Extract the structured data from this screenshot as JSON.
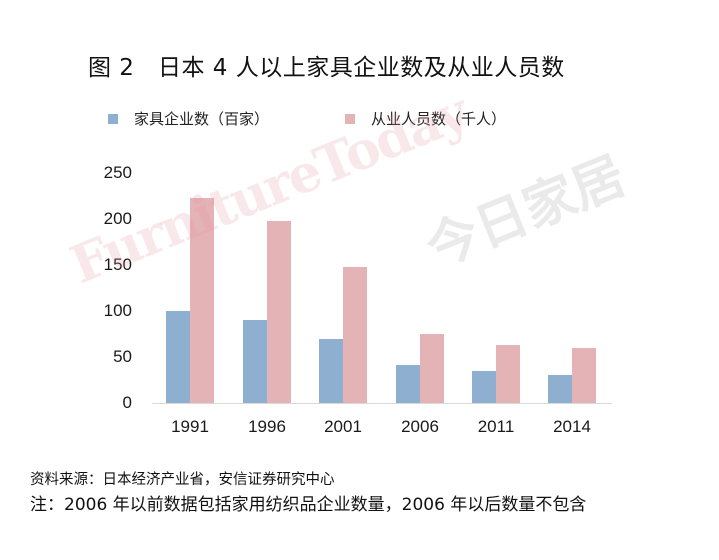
{
  "title": "图 2　日本 4 人以上家具企业数及从业人员数",
  "legend": [
    {
      "label": "家具企业数（百家）",
      "color": "#8eafd0"
    },
    {
      "label": "从业人员数（千人）",
      "color": "#e4b3b6"
    }
  ],
  "watermark": {
    "en": "FurnitureToday",
    "zh": "今日家居"
  },
  "yticks": [
    "250",
    "200",
    "150",
    "100",
    "50",
    "0"
  ],
  "source": "资料来源：日本经济产业省，安信证券研究中心",
  "note": "注：2006 年以前数据包括家用纺织品企业数量，2006 年以后数量不包含",
  "chart_data": {
    "type": "bar",
    "title": "图 2　日本 4 人以上家具企业数及从业人员数",
    "categories": [
      "1991",
      "1996",
      "2001",
      "2006",
      "2011",
      "2014"
    ],
    "series": [
      {
        "name": "家具企业数（百家）",
        "color": "#8eafd0",
        "values": [
          101,
          91,
          71,
          42,
          36,
          31
        ]
      },
      {
        "name": "从业人员数（千人）",
        "color": "#e4b3b6",
        "values": [
          224,
          199,
          149,
          76,
          64,
          61
        ]
      }
    ],
    "xlabel": "",
    "ylabel": "",
    "ylim": [
      0,
      250
    ],
    "yticks": [
      0,
      50,
      100,
      150,
      200,
      250
    ],
    "grid": false,
    "legend_position": "top"
  }
}
